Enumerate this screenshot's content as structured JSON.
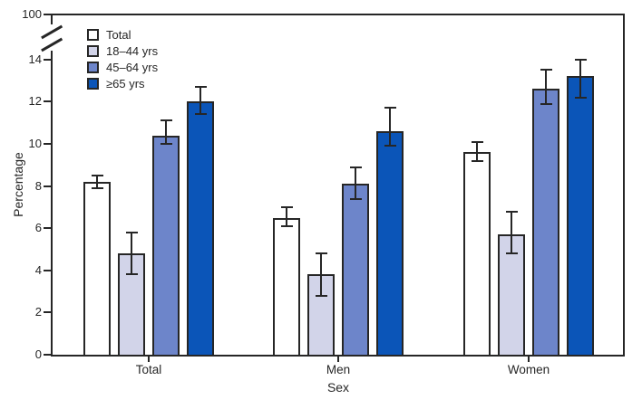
{
  "chart_data": {
    "type": "bar",
    "title": "",
    "xlabel": "Sex",
    "ylabel": "Percentage",
    "categories": [
      "Total",
      "Men",
      "Women"
    ],
    "series": [
      {
        "name": "Total",
        "color": "#ffffff",
        "values": [
          8.2,
          6.5,
          9.6
        ],
        "ci_low": [
          7.9,
          6.1,
          9.2
        ],
        "ci_high": [
          8.5,
          7.0,
          10.1
        ]
      },
      {
        "name": "18–44 yrs",
        "color": "#d2d4e9",
        "values": [
          4.8,
          3.8,
          5.7
        ],
        "ci_low": [
          3.8,
          2.8,
          4.8
        ],
        "ci_high": [
          5.8,
          4.8,
          6.8
        ]
      },
      {
        "name": "45–64 yrs",
        "color": "#6d85ca",
        "values": [
          10.4,
          8.1,
          12.6
        ],
        "ci_low": [
          10.0,
          7.4,
          11.9
        ],
        "ci_high": [
          11.1,
          8.9,
          13.5
        ]
      },
      {
        "name": "≥65 yrs",
        "color": "#0b55b8",
        "values": [
          12.0,
          10.6,
          13.2
        ],
        "ci_low": [
          11.4,
          9.9,
          12.2
        ],
        "ci_high": [
          12.7,
          11.7,
          14.0
        ]
      }
    ],
    "y_ticks": [
      "0",
      "2",
      "4",
      "6",
      "8",
      "10",
      "12",
      "14"
    ],
    "y_axis_break": {
      "upper_label": "100"
    },
    "error_bars": true,
    "grid": false,
    "legend_position": "top-left-inside",
    "axis_color": "#262626",
    "background_color": "#ffffff"
  }
}
